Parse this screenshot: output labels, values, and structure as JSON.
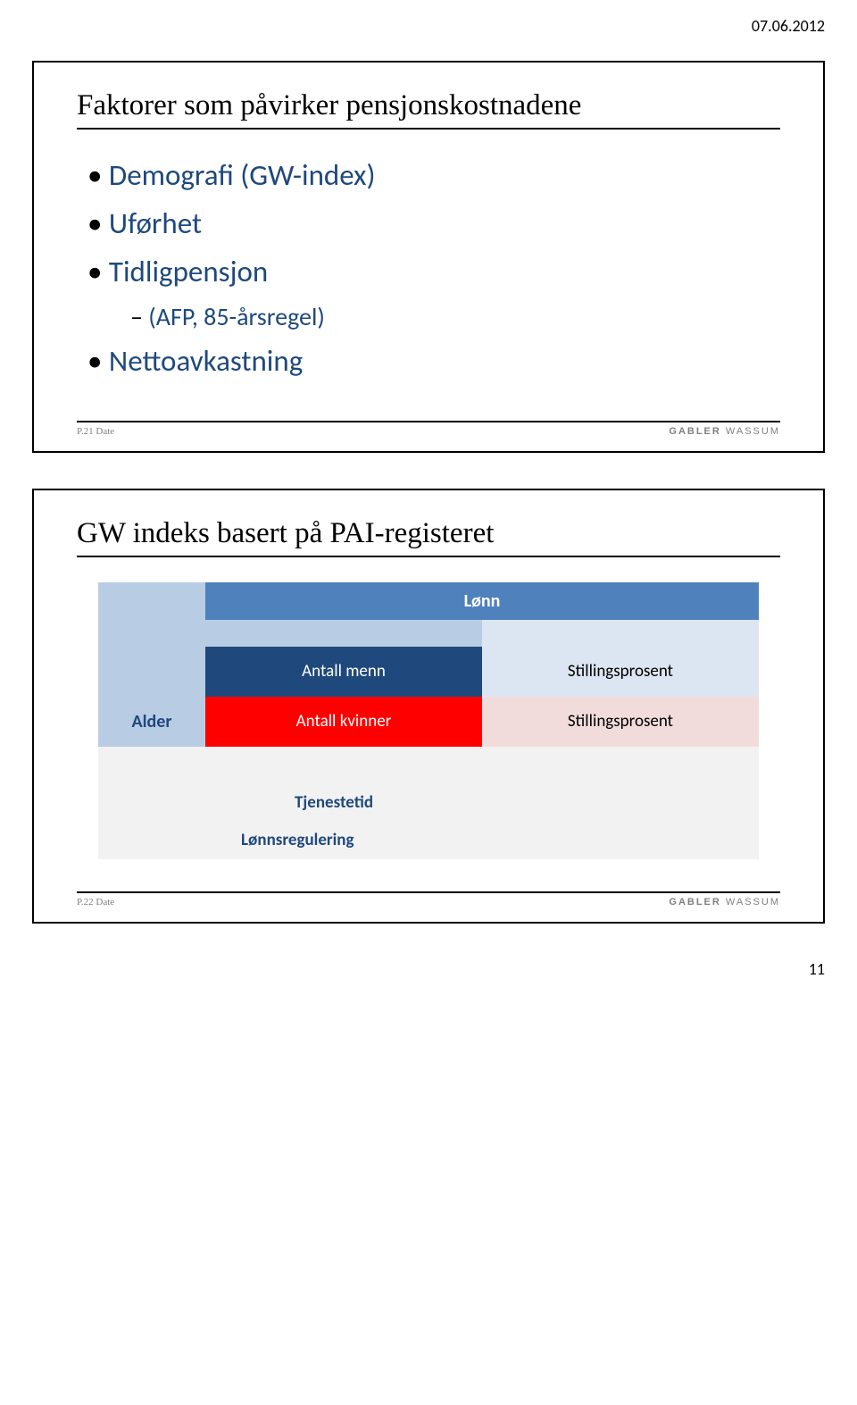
{
  "header_date": "07.06.2012",
  "page_number": "11",
  "brand": {
    "bold": "GABLER",
    "light": "WASSUM"
  },
  "slide1": {
    "title": "Faktorer som påvirker pensjonskostnadene",
    "bullets": {
      "b1": "Demografi (GW-index)",
      "b2": "Uførhet",
      "b3": "Tidligpensjon",
      "b3a": "(AFP, 85-årsregel)",
      "b4": "Nettoavkastning"
    },
    "footer_left": "P.21 Date"
  },
  "slide2": {
    "title": "GW indeks basert på PAI-registeret",
    "diagram": {
      "lonn": "Lønn",
      "alder": "Alder",
      "antall_menn": "Antall menn",
      "stillingsprosent_menn": "Stillingsprosent",
      "antall_kvinner": "Antall kvinner",
      "stillingsprosent_kvinner": "Stillingsprosent",
      "tjenestetid": "Tjenestetid",
      "lonnsregulering": "Lønnsregulering"
    },
    "colors": {
      "header_blue": "#4f81bd",
      "pale_blue": "#b8cce4",
      "very_pale_blue": "#dce6f2",
      "dark_blue": "#1f497d",
      "red": "#ff0000",
      "pale_pink": "#f2dcdb",
      "gray_bg": "#f2f2f2",
      "text_blue": "#1f497d"
    },
    "footer_left": "P.22 Date"
  }
}
